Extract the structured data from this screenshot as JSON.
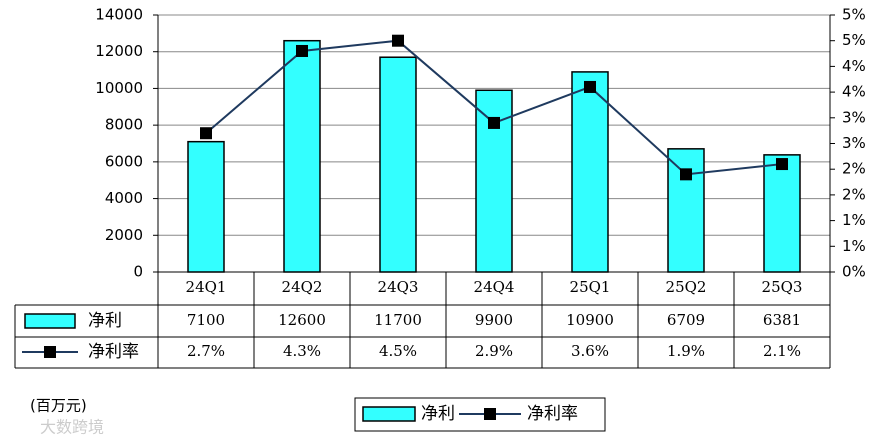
{
  "chart_data": {
    "type": "bar",
    "categories": [
      "24Q1",
      "24Q2",
      "24Q3",
      "24Q4",
      "25Q1",
      "25Q2",
      "25Q3"
    ],
    "series": [
      {
        "name": "净利",
        "color": "#33ffff",
        "values": [
          7100,
          12600,
          11700,
          9900,
          10900,
          6709,
          6381
        ]
      },
      {
        "name": "净利率",
        "type": "line",
        "axis": "y2",
        "color": "#1f3a5f",
        "values": [
          2.7,
          4.3,
          4.5,
          2.9,
          3.6,
          1.9,
          2.1
        ],
        "value_labels": [
          "2.7%",
          "4.3%",
          "4.5%",
          "2.9%",
          "3.6%",
          "1.9%",
          "2.1%"
        ]
      }
    ],
    "ylim": [
      0,
      14000
    ],
    "yticks": [
      0,
      2000,
      4000,
      6000,
      8000,
      10000,
      12000,
      14000
    ],
    "y2lim": [
      0,
      5
    ],
    "y2ticks": [
      {
        "value": 0,
        "label": "0%"
      },
      {
        "value": 0.5,
        "label": "1%"
      },
      {
        "value": 1,
        "label": "1%"
      },
      {
        "value": 1.5,
        "label": "2%"
      },
      {
        "value": 2,
        "label": "2%"
      },
      {
        "value": 2.5,
        "label": "3%"
      },
      {
        "value": 3,
        "label": "3%"
      },
      {
        "value": 3.5,
        "label": "4%"
      },
      {
        "value": 4,
        "label": "4%"
      },
      {
        "value": 4.5,
        "label": "5%"
      },
      {
        "value": 5,
        "label": "5%"
      }
    ],
    "grid": true,
    "unit": "(百万元)",
    "watermark": "大数跨境"
  }
}
